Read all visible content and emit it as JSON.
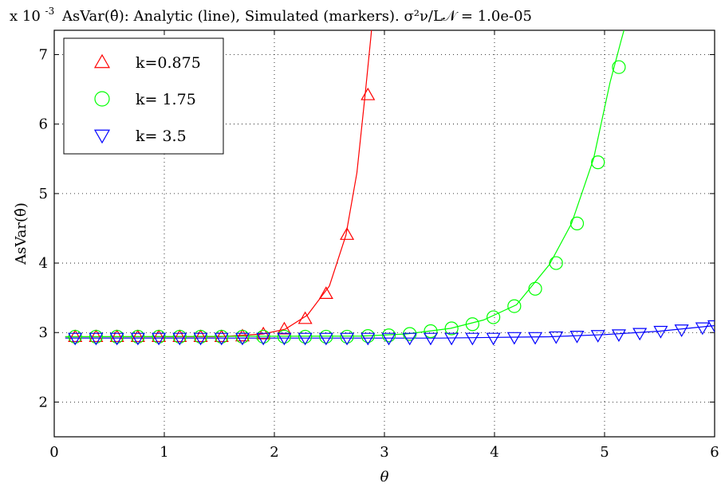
{
  "chart_data": {
    "type": "line",
    "title": "AsVar(θ̂): Analytic (line), Simulated (markers). σ²ν/L𝒩 = 1.0e-05",
    "scale_label": "x 10",
    "scale_exponent": "-3",
    "xlabel": "θ",
    "ylabel": "AsVar(θ̂)",
    "xlim": [
      0,
      6
    ],
    "ylim": [
      1.5,
      7.35
    ],
    "xticks": [
      "0",
      "1",
      "2",
      "3",
      "4",
      "5",
      "6"
    ],
    "yticks": [
      "2",
      "3",
      "4",
      "5",
      "6",
      "7"
    ],
    "grid": true,
    "legend_position": "top-left",
    "series": [
      {
        "name": "k=0.875",
        "color": "#ff0000",
        "marker": "triangle-up",
        "x": [
          0.19,
          0.38,
          0.57,
          0.76,
          0.95,
          1.14,
          1.33,
          1.52,
          1.71,
          1.9,
          2.09,
          2.28,
          2.47,
          2.66,
          2.85
        ],
        "y": [
          2.94,
          2.94,
          2.94,
          2.94,
          2.94,
          2.94,
          2.94,
          2.94,
          2.95,
          2.98,
          3.05,
          3.2,
          3.56,
          4.41,
          6.42
        ]
      },
      {
        "name": "k= 1.75",
        "color": "#00ff00",
        "marker": "circle",
        "x": [
          0.19,
          0.38,
          0.57,
          0.76,
          0.95,
          1.14,
          1.33,
          1.52,
          1.71,
          1.9,
          2.09,
          2.28,
          2.47,
          2.66,
          2.85,
          3.04,
          3.23,
          3.42,
          3.61,
          3.8,
          3.99,
          4.18,
          4.37,
          4.56,
          4.75,
          4.94,
          5.13
        ],
        "y": [
          2.94,
          2.94,
          2.94,
          2.94,
          2.94,
          2.94,
          2.94,
          2.94,
          2.94,
          2.94,
          2.94,
          2.94,
          2.94,
          2.94,
          2.95,
          2.96,
          2.98,
          3.02,
          3.06,
          3.12,
          3.22,
          3.38,
          3.63,
          4.0,
          4.57,
          5.45,
          6.82
        ]
      },
      {
        "name": "k= 3.5",
        "color": "#0000ff",
        "marker": "triangle-down",
        "x": [
          0.19,
          0.38,
          0.57,
          0.76,
          0.95,
          1.14,
          1.33,
          1.52,
          1.71,
          1.9,
          2.09,
          2.28,
          2.47,
          2.66,
          2.85,
          3.04,
          3.23,
          3.42,
          3.61,
          3.8,
          3.99,
          4.18,
          4.37,
          4.56,
          4.75,
          4.94,
          5.13,
          5.32,
          5.51,
          5.7,
          5.89,
          6.0
        ],
        "y": [
          2.92,
          2.92,
          2.92,
          2.92,
          2.92,
          2.92,
          2.92,
          2.92,
          2.92,
          2.92,
          2.92,
          2.92,
          2.92,
          2.92,
          2.92,
          2.92,
          2.92,
          2.92,
          2.92,
          2.92,
          2.92,
          2.93,
          2.93,
          2.94,
          2.95,
          2.96,
          2.97,
          2.99,
          3.02,
          3.04,
          3.07,
          3.1
        ]
      }
    ],
    "analytic_lines": [
      {
        "series": "k=0.875",
        "x": [
          0.1,
          1.5,
          1.9,
          2.1,
          2.3,
          2.5,
          2.65,
          2.75,
          2.83,
          2.88,
          2.92
        ],
        "y": [
          2.94,
          2.94,
          2.98,
          3.05,
          3.25,
          3.67,
          4.4,
          5.3,
          6.5,
          7.3,
          8.2
        ]
      },
      {
        "series": "k= 1.75",
        "x": [
          0.1,
          2.8,
          3.2,
          3.6,
          3.9,
          4.2,
          4.5,
          4.7,
          4.9,
          5.05,
          5.15,
          5.22,
          5.28
        ],
        "y": [
          2.94,
          2.95,
          2.98,
          3.06,
          3.18,
          3.4,
          3.98,
          4.57,
          5.5,
          6.6,
          7.2,
          7.6,
          8.2
        ]
      },
      {
        "series": "k= 3.5",
        "x": [
          0.1,
          3.5,
          4.0,
          4.5,
          5.0,
          5.5,
          6.0
        ],
        "y": [
          2.92,
          2.92,
          2.93,
          2.94,
          2.97,
          3.02,
          3.1
        ]
      }
    ]
  }
}
